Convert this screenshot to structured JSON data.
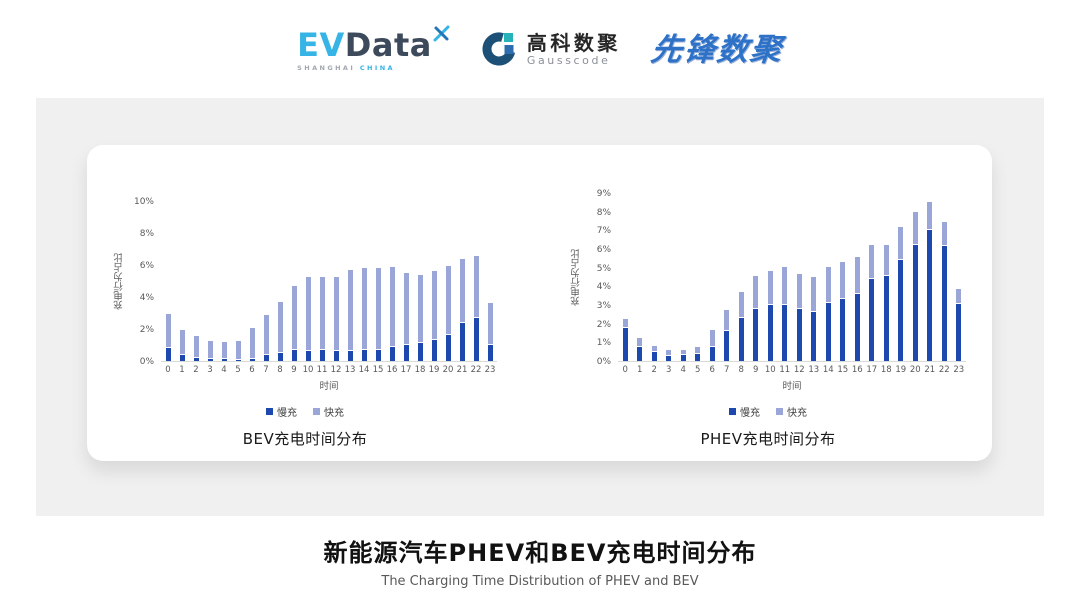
{
  "header": {
    "evdata": {
      "ev": "EV",
      "data": "Data",
      "sub_left": "SHANGHAI",
      "sub_right": "CHINA"
    },
    "gausscode": {
      "cn": "高科数聚",
      "en": "Gausscode"
    },
    "xianfeng": {
      "text": "先锋数聚"
    }
  },
  "colors": {
    "slow_charge": "#1d49ae",
    "fast_charge": "#9aa5d8",
    "band_background": "#f0f0f0",
    "axis_text": "#595959"
  },
  "chart_data": [
    {
      "type": "bar",
      "stacked": true,
      "title": "BEV充电时间分布",
      "xlabel": "时间",
      "ylabel": "充电行为占比",
      "x": [
        0,
        1,
        2,
        3,
        4,
        5,
        6,
        7,
        8,
        9,
        10,
        11,
        12,
        13,
        14,
        15,
        16,
        17,
        18,
        19,
        20,
        21,
        22,
        23
      ],
      "ylim": [
        0,
        10
      ],
      "ytick_step": 2,
      "ytick_suffix": "%",
      "grid": false,
      "legend_position": "bottom",
      "legend": [
        "慢充",
        "快充"
      ],
      "series": [
        {
          "name": "慢充",
          "values": [
            0.8,
            0.35,
            0.2,
            0.12,
            0.1,
            0.07,
            0.15,
            0.35,
            0.5,
            0.7,
            0.65,
            0.7,
            0.6,
            0.6,
            0.7,
            0.7,
            0.85,
            1.0,
            1.1,
            1.3,
            1.6,
            2.4,
            2.7,
            1.0
          ]
        },
        {
          "name": "快充",
          "values": [
            2.1,
            1.55,
            1.3,
            1.1,
            1.0,
            1.15,
            1.85,
            2.45,
            3.1,
            3.9,
            4.55,
            4.5,
            4.6,
            5.0,
            5.05,
            5.05,
            4.95,
            4.45,
            4.2,
            4.25,
            4.3,
            3.9,
            3.8,
            2.55
          ]
        }
      ]
    },
    {
      "type": "bar",
      "stacked": true,
      "title": "PHEV充电时间分布",
      "xlabel": "时间",
      "ylabel": "充电行为占比",
      "x": [
        0,
        1,
        2,
        3,
        4,
        5,
        6,
        7,
        8,
        9,
        10,
        11,
        12,
        13,
        14,
        15,
        16,
        17,
        18,
        19,
        20,
        21,
        22,
        23
      ],
      "ylim": [
        0,
        9
      ],
      "ytick_step": 1,
      "ytick_suffix": "%",
      "grid": false,
      "legend_position": "bottom",
      "legend": [
        "慢充",
        "快充"
      ],
      "series": [
        {
          "name": "慢充",
          "values": [
            1.75,
            0.77,
            0.46,
            0.25,
            0.3,
            0.36,
            0.75,
            1.6,
            2.3,
            2.8,
            3.0,
            3.0,
            2.8,
            2.65,
            3.1,
            3.3,
            3.6,
            4.4,
            4.55,
            5.4,
            6.2,
            7.0,
            6.15,
            3.05
          ]
        },
        {
          "name": "快充",
          "values": [
            0.45,
            0.4,
            0.27,
            0.3,
            0.25,
            0.35,
            0.85,
            1.1,
            1.35,
            1.7,
            1.75,
            2.0,
            1.8,
            1.8,
            1.9,
            1.95,
            1.9,
            1.75,
            1.6,
            1.7,
            1.75,
            1.45,
            1.25,
            0.75
          ]
        }
      ]
    }
  ],
  "footer": {
    "title_cn": "新能源汽车PHEV和BEV充电时间分布",
    "title_en": "The Charging Time Distribution of PHEV and BEV"
  }
}
